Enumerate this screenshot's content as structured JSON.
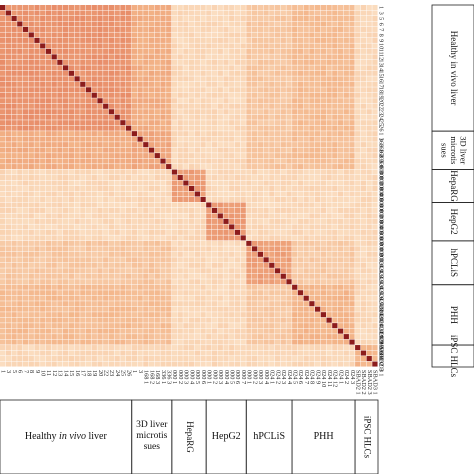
{
  "chart_data": {
    "type": "heatmap",
    "title": "",
    "xlabel": "",
    "ylabel": "",
    "n": 66,
    "row_labels": [
      "1",
      "3",
      "5",
      "6",
      "7",
      "8",
      "9",
      "10",
      "11",
      "12",
      "13",
      "14",
      "15",
      "16",
      "17",
      "18",
      "19",
      "20",
      "22",
      "23",
      "24",
      "25",
      "26",
      "1",
      "3",
      "168 1",
      "168 2",
      "168 3",
      "336 1",
      "336 3",
      "000 1",
      "000 2",
      "000 3",
      "000 4",
      "000 5",
      "000 6",
      "000 1",
      "000 2",
      "000 3",
      "000 4",
      "000 5",
      "000 6",
      "000 7",
      "000 1",
      "000 2",
      "000 3",
      "000 4",
      "024 1",
      "024 2",
      "024 3",
      "024 4",
      "024 5",
      "024 6",
      "024 7",
      "024 8",
      "024 9",
      "024 10",
      "024 11",
      "024 12",
      "024 1",
      "024 2",
      "024 3",
      "SBAD2 1",
      "SBAD2 2",
      "SBAD2 3",
      "SBAD3 1"
    ],
    "groups": [
      {
        "name_parts": [
          "Healthy ",
          "in vivo",
          " liver"
        ],
        "name_side_lines": [
          "Healthy in vivo liver"
        ],
        "start": 0,
        "end": 23
      },
      {
        "name_parts": [
          "3D liver microtis sues"
        ],
        "name_side_lines": [
          "3D liver",
          "microtis",
          "sues"
        ],
        "bottom_lines": [
          "3D liver",
          "microtis",
          "sues"
        ],
        "start": 23,
        "end": 30
      },
      {
        "name_parts": [
          "HepaRG"
        ],
        "name_side_lines": [
          "HepaRG"
        ],
        "start": 30,
        "end": 36
      },
      {
        "name_parts": [
          "HepG2"
        ],
        "name_side_lines": [
          "HepG2"
        ],
        "start": 36,
        "end": 43
      },
      {
        "name_parts": [
          "hPCLiS"
        ],
        "name_side_lines": [
          "hPCLiS"
        ],
        "start": 43,
        "end": 51
      },
      {
        "name_parts": [
          "PHH"
        ],
        "name_side_lines": [
          "PHH"
        ],
        "start": 51,
        "end": 62
      },
      {
        "name_parts": [
          "iPSC HLCs"
        ],
        "name_side_lines": [
          "iPSC HLCs"
        ],
        "start": 62,
        "end": 66
      }
    ],
    "colors": {
      "low": "#fde9d0",
      "mid": "#f3b488",
      "high": "#e4805f",
      "diagonal": "#8c1c1c",
      "grid": "#ffffff"
    },
    "color_scale": "correlation, light peach (low) to red-orange (high), dark red on diagonal"
  }
}
